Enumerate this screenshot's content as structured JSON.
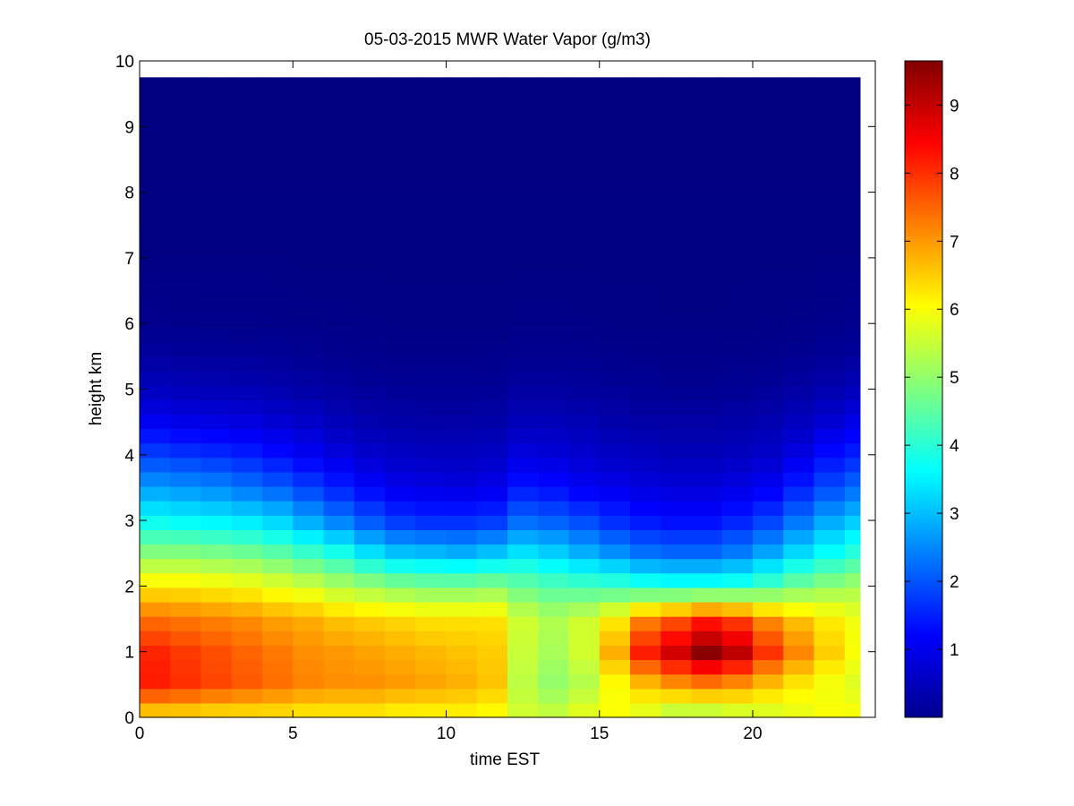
{
  "chart_data": {
    "type": "heatmap",
    "title": "05-03-2015 MWR Water Vapor (g/m3)",
    "xlabel": "time EST",
    "ylabel": "height km",
    "xlim": [
      0,
      24
    ],
    "ylim": [
      0,
      10
    ],
    "x_ticks": [
      "0",
      "5",
      "10",
      "15",
      "20"
    ],
    "y_ticks": [
      "0",
      "1",
      "2",
      "3",
      "4",
      "5",
      "6",
      "7",
      "8",
      "9",
      "10"
    ],
    "colorbar": {
      "colormap": "jet",
      "range": [
        0,
        9.65
      ],
      "ticks": [
        "1",
        "2",
        "3",
        "4",
        "5",
        "6",
        "7",
        "8",
        "9"
      ]
    },
    "time_hours": [
      0,
      1,
      2,
      3,
      4,
      5,
      6,
      7,
      8,
      9,
      10,
      11,
      12,
      13,
      14,
      15,
      16,
      17,
      18,
      19,
      20,
      21,
      22,
      23
    ],
    "heights_km": [
      0.05,
      0.5,
      1.0,
      1.5,
      2.0,
      2.5,
      3.0,
      3.5,
      4.0,
      4.5,
      5.0,
      5.5,
      6.0,
      7.0,
      8.0,
      9.0,
      9.75
    ],
    "values": [
      [
        6.4,
        6.4,
        6.3,
        6.3,
        6.3,
        6.2,
        6.2,
        6.2,
        6.1,
        6.1,
        6.1,
        6.0,
        5.6,
        5.5,
        5.8,
        6.0,
        5.7,
        5.3,
        5.3,
        5.5,
        5.6,
        5.8,
        6.0,
        6.0
      ],
      [
        8.2,
        8.0,
        7.8,
        7.6,
        7.4,
        7.2,
        7.1,
        7.1,
        7.0,
        6.9,
        6.8,
        6.6,
        5.4,
        5.0,
        5.3,
        6.0,
        6.6,
        7.0,
        7.2,
        7.0,
        6.6,
        6.2,
        5.9,
        5.7
      ],
      [
        8.1,
        7.9,
        7.7,
        7.5,
        7.3,
        7.1,
        7.0,
        6.9,
        6.8,
        6.7,
        6.6,
        6.5,
        5.5,
        5.2,
        5.6,
        6.8,
        8.2,
        8.9,
        9.6,
        9.1,
        8.0,
        7.2,
        6.5,
        6.0
      ],
      [
        7.4,
        7.3,
        7.2,
        7.1,
        6.9,
        6.8,
        6.6,
        6.5,
        6.4,
        6.3,
        6.3,
        6.3,
        5.6,
        5.3,
        5.6,
        6.2,
        7.2,
        7.6,
        8.1,
        7.8,
        7.1,
        6.6,
        6.2,
        5.9
      ],
      [
        6.2,
        6.2,
        6.1,
        6.0,
        5.8,
        5.6,
        5.3,
        5.1,
        4.9,
        4.8,
        4.8,
        4.9,
        4.6,
        4.4,
        4.3,
        4.2,
        4.0,
        3.9,
        3.9,
        4.0,
        4.3,
        4.7,
        5.0,
        5.2
      ],
      [
        4.9,
        4.9,
        4.8,
        4.7,
        4.5,
        4.2,
        3.9,
        3.4,
        3.1,
        3.0,
        2.9,
        3.1,
        3.4,
        3.2,
        2.9,
        2.6,
        2.3,
        2.2,
        2.2,
        2.4,
        2.8,
        3.3,
        3.7,
        4.0
      ],
      [
        3.7,
        3.6,
        3.5,
        3.4,
        3.2,
        2.8,
        2.4,
        2.0,
        1.7,
        1.6,
        1.6,
        1.7,
        2.2,
        2.1,
        1.9,
        1.6,
        1.4,
        1.3,
        1.3,
        1.5,
        1.8,
        2.3,
        2.8,
        3.1
      ],
      [
        2.7,
        2.6,
        2.5,
        2.3,
        2.1,
        1.8,
        1.5,
        1.2,
        1.0,
        0.95,
        0.9,
        1.0,
        1.4,
        1.3,
        1.1,
        1.0,
        0.9,
        0.85,
        0.85,
        0.95,
        1.1,
        1.5,
        1.9,
        2.2
      ],
      [
        1.8,
        1.7,
        1.6,
        1.5,
        1.3,
        1.1,
        0.9,
        0.75,
        0.65,
        0.6,
        0.6,
        0.65,
        0.9,
        0.85,
        0.75,
        0.65,
        0.6,
        0.55,
        0.55,
        0.6,
        0.7,
        0.95,
        1.3,
        1.5
      ],
      [
        1.1,
        1.0,
        0.95,
        0.9,
        0.8,
        0.7,
        0.55,
        0.45,
        0.4,
        0.38,
        0.37,
        0.4,
        0.55,
        0.55,
        0.5,
        0.42,
        0.38,
        0.35,
        0.35,
        0.4,
        0.45,
        0.6,
        0.8,
        1.0
      ],
      [
        0.6,
        0.55,
        0.52,
        0.5,
        0.45,
        0.38,
        0.3,
        0.25,
        0.22,
        0.2,
        0.2,
        0.22,
        0.3,
        0.3,
        0.28,
        0.23,
        0.2,
        0.18,
        0.18,
        0.2,
        0.25,
        0.35,
        0.45,
        0.55
      ],
      [
        0.3,
        0.28,
        0.26,
        0.25,
        0.22,
        0.18,
        0.15,
        0.12,
        0.1,
        0.1,
        0.1,
        0.11,
        0.15,
        0.15,
        0.14,
        0.11,
        0.1,
        0.09,
        0.09,
        0.1,
        0.12,
        0.17,
        0.22,
        0.28
      ],
      [
        0.12,
        0.11,
        0.1,
        0.1,
        0.09,
        0.08,
        0.07,
        0.06,
        0.05,
        0.05,
        0.05,
        0.05,
        0.07,
        0.07,
        0.06,
        0.05,
        0.05,
        0.04,
        0.04,
        0.05,
        0.06,
        0.08,
        0.1,
        0.12
      ],
      [
        0.04,
        0.04,
        0.04,
        0.04,
        0.04,
        0.03,
        0.03,
        0.03,
        0.03,
        0.03,
        0.03,
        0.03,
        0.03,
        0.03,
        0.03,
        0.03,
        0.03,
        0.02,
        0.02,
        0.03,
        0.03,
        0.03,
        0.04,
        0.04
      ],
      [
        0.02,
        0.02,
        0.02,
        0.02,
        0.02,
        0.02,
        0.02,
        0.02,
        0.02,
        0.02,
        0.02,
        0.02,
        0.02,
        0.02,
        0.02,
        0.02,
        0.02,
        0.02,
        0.02,
        0.02,
        0.02,
        0.02,
        0.02,
        0.02
      ],
      [
        0.01,
        0.01,
        0.01,
        0.01,
        0.01,
        0.01,
        0.01,
        0.01,
        0.01,
        0.01,
        0.01,
        0.01,
        0.01,
        0.01,
        0.01,
        0.01,
        0.01,
        0.01,
        0.01,
        0.01,
        0.01,
        0.01,
        0.01,
        0.01
      ],
      [
        0.0,
        0.0,
        0.0,
        0.0,
        0.0,
        0.0,
        0.0,
        0.0,
        0.0,
        0.0,
        0.0,
        0.0,
        0.0,
        0.0,
        0.0,
        0.0,
        0.0,
        0.0,
        0.0,
        0.0,
        0.0,
        0.0,
        0.0,
        0.0
      ]
    ]
  }
}
